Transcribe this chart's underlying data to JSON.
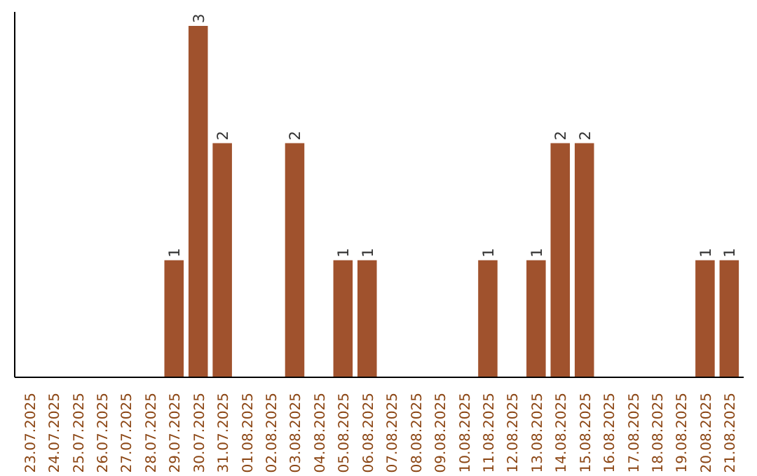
{
  "chart_data": {
    "type": "bar",
    "categories": [
      "23.07.2025",
      "24.07.2025",
      "25.07.2025",
      "26.07.2025",
      "27.07.2025",
      "28.07.2025",
      "29.07.2025",
      "30.07.2025",
      "31.07.2025",
      "01.08.2025",
      "02.08.2025",
      "03.08.2025",
      "04.08.2025",
      "05.08.2025",
      "06.08.2025",
      "07.08.2025",
      "08.08.2025",
      "09.08.2025",
      "10.08.2025",
      "11.08.2025",
      "12.08.2025",
      "13.08.2025",
      "14.08.2025",
      "15.08.2025",
      "16.08.2025",
      "17.08.2025",
      "18.08.2025",
      "19.08.2025",
      "20.08.2025",
      "21.08.2025"
    ],
    "values": [
      0,
      0,
      0,
      0,
      0,
      0,
      1,
      3,
      2,
      0,
      0,
      2,
      0,
      1,
      1,
      0,
      0,
      0,
      0,
      1,
      0,
      1,
      2,
      2,
      0,
      0,
      0,
      0,
      1,
      1
    ],
    "value_labels": [
      null,
      null,
      null,
      null,
      null,
      null,
      "1",
      "3",
      "2",
      null,
      null,
      "2",
      null,
      "1",
      "1",
      null,
      null,
      null,
      null,
      "1",
      null,
      "1",
      "2",
      "2",
      null,
      null,
      null,
      null,
      "1",
      "1"
    ],
    "color": "#a0522d",
    "grid": false,
    "tick_labels": "x"
  }
}
